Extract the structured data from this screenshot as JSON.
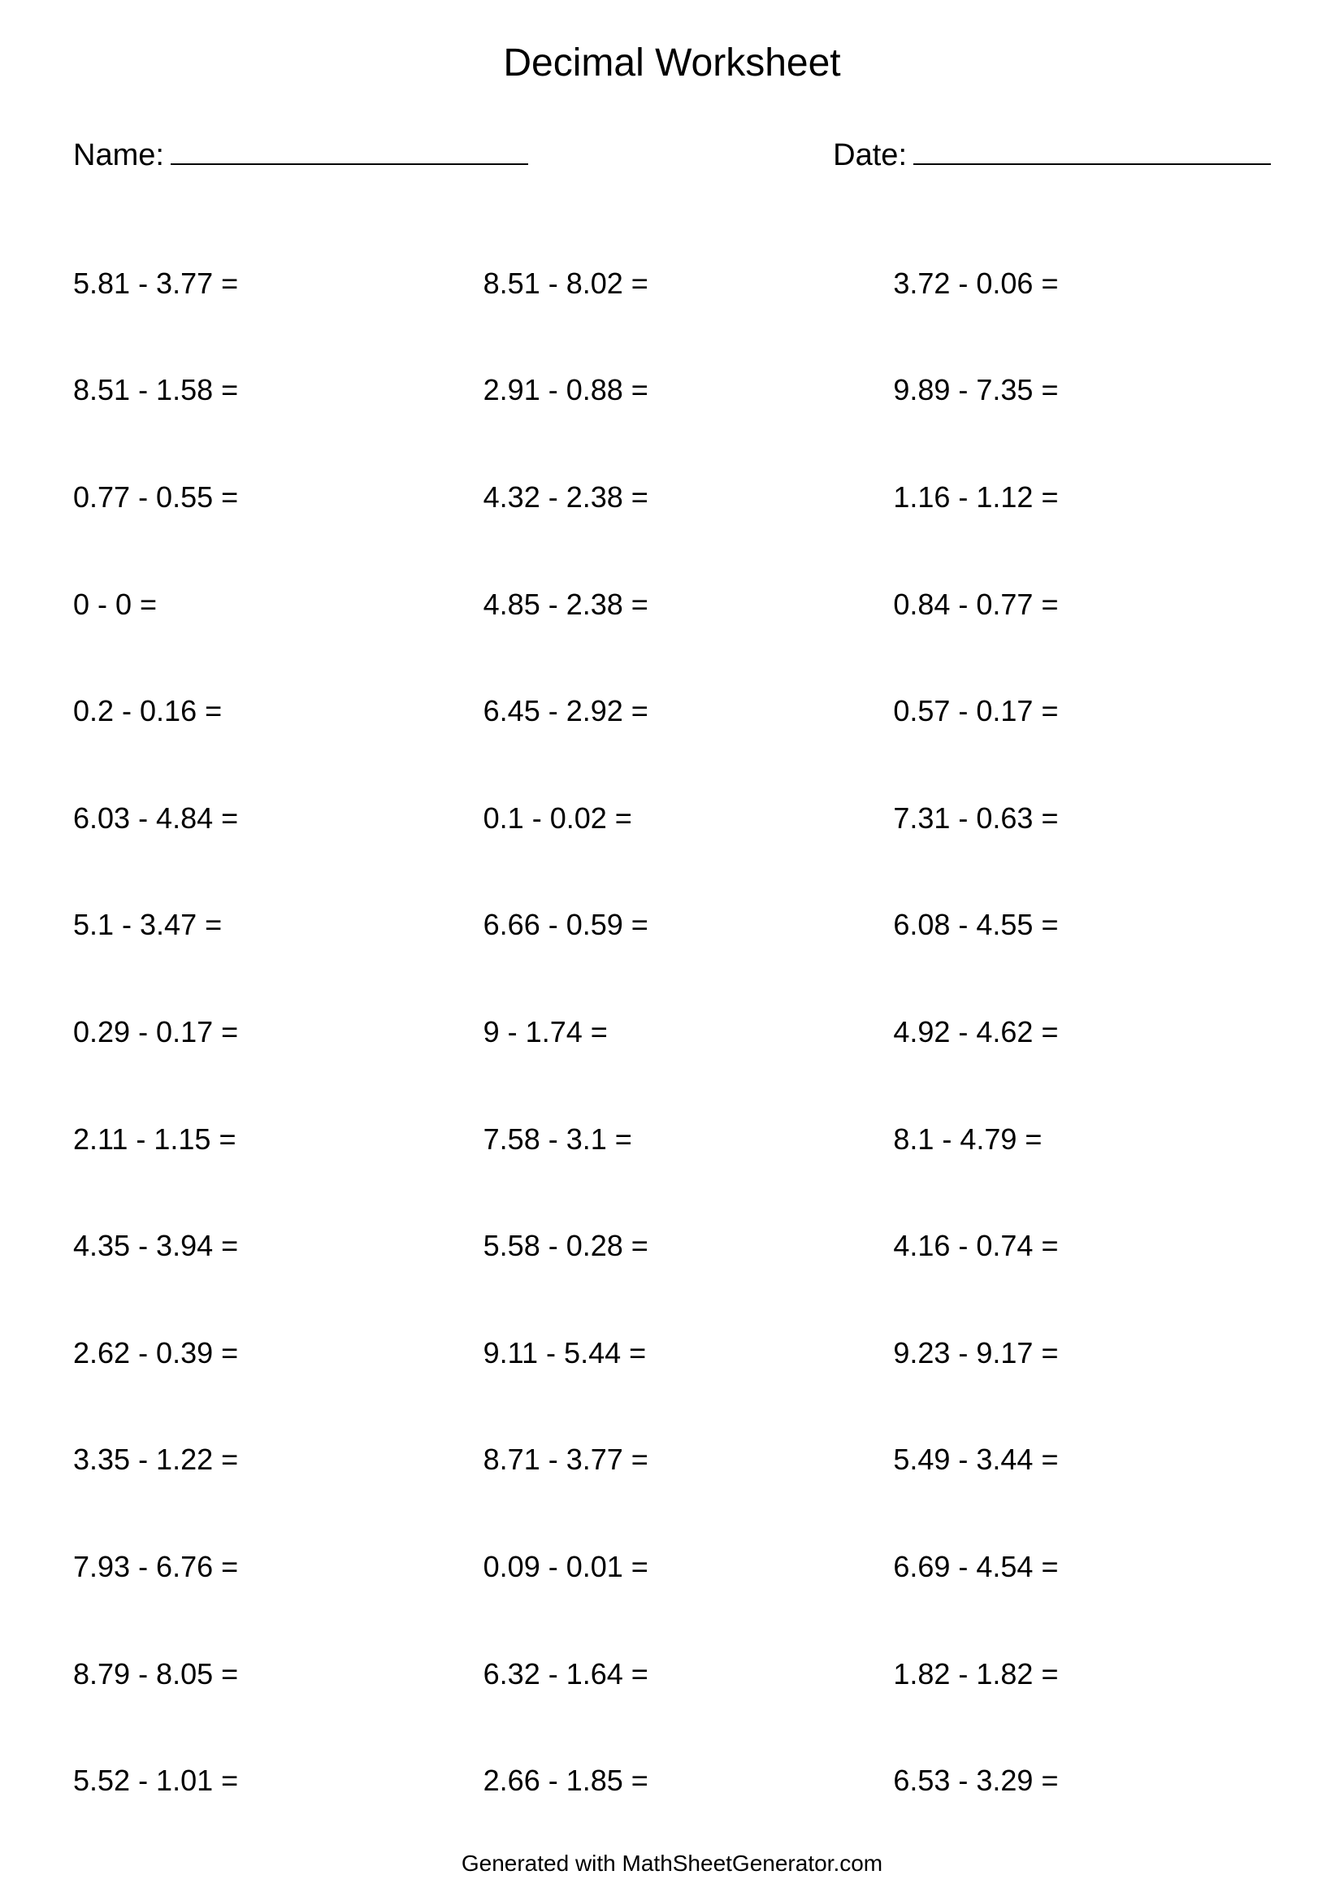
{
  "title": "Decimal Worksheet",
  "header": {
    "name_label": "Name:",
    "date_label": "Date:"
  },
  "layout": {
    "columns": 3,
    "rows": 15,
    "background_color": "#ffffff",
    "text_color": "#000000",
    "title_fontsize": 48,
    "header_fontsize": 38,
    "problem_fontsize": 36,
    "footer_fontsize": 28
  },
  "problems": [
    {
      "a": "5.81",
      "op": "-",
      "b": "3.77"
    },
    {
      "a": "8.51",
      "op": "-",
      "b": "1.58"
    },
    {
      "a": "0.77",
      "op": "-",
      "b": "0.55"
    },
    {
      "a": "0",
      "op": "-",
      "b": "0"
    },
    {
      "a": "0.2",
      "op": "-",
      "b": "0.16"
    },
    {
      "a": "6.03",
      "op": "-",
      "b": "4.84"
    },
    {
      "a": "5.1",
      "op": "-",
      "b": "3.47"
    },
    {
      "a": "0.29",
      "op": "-",
      "b": "0.17"
    },
    {
      "a": "2.11",
      "op": "-",
      "b": "1.15"
    },
    {
      "a": "4.35",
      "op": "-",
      "b": "3.94"
    },
    {
      "a": "2.62",
      "op": "-",
      "b": "0.39"
    },
    {
      "a": "3.35",
      "op": "-",
      "b": "1.22"
    },
    {
      "a": "7.93",
      "op": "-",
      "b": "6.76"
    },
    {
      "a": "8.79",
      "op": "-",
      "b": "8.05"
    },
    {
      "a": "5.52",
      "op": "-",
      "b": "1.01"
    },
    {
      "a": "8.51",
      "op": "-",
      "b": "8.02"
    },
    {
      "a": "2.91",
      "op": "-",
      "b": "0.88"
    },
    {
      "a": "4.32",
      "op": "-",
      "b": "2.38"
    },
    {
      "a": "4.85",
      "op": "-",
      "b": "2.38"
    },
    {
      "a": "6.45",
      "op": "-",
      "b": "2.92"
    },
    {
      "a": "0.1",
      "op": "-",
      "b": "0.02"
    },
    {
      "a": "6.66",
      "op": "-",
      "b": "0.59"
    },
    {
      "a": "9",
      "op": "-",
      "b": "1.74"
    },
    {
      "a": "7.58",
      "op": "-",
      "b": "3.1"
    },
    {
      "a": "5.58",
      "op": "-",
      "b": "0.28"
    },
    {
      "a": "9.11",
      "op": "-",
      "b": "5.44"
    },
    {
      "a": "8.71",
      "op": "-",
      "b": "3.77"
    },
    {
      "a": "0.09",
      "op": "-",
      "b": "0.01"
    },
    {
      "a": "6.32",
      "op": "-",
      "b": "1.64"
    },
    {
      "a": "2.66",
      "op": "-",
      "b": "1.85"
    },
    {
      "a": "3.72",
      "op": "-",
      "b": "0.06"
    },
    {
      "a": "9.89",
      "op": "-",
      "b": "7.35"
    },
    {
      "a": "1.16",
      "op": "-",
      "b": "1.12"
    },
    {
      "a": "0.84",
      "op": "-",
      "b": "0.77"
    },
    {
      "a": "0.57",
      "op": "-",
      "b": "0.17"
    },
    {
      "a": "7.31",
      "op": "-",
      "b": "0.63"
    },
    {
      "a": "6.08",
      "op": "-",
      "b": "4.55"
    },
    {
      "a": "4.92",
      "op": "-",
      "b": "4.62"
    },
    {
      "a": "8.1",
      "op": "-",
      "b": "4.79"
    },
    {
      "a": "4.16",
      "op": "-",
      "b": "0.74"
    },
    {
      "a": "9.23",
      "op": "-",
      "b": "9.17"
    },
    {
      "a": "5.49",
      "op": "-",
      "b": "3.44"
    },
    {
      "a": "6.69",
      "op": "-",
      "b": "4.54"
    },
    {
      "a": "1.82",
      "op": "-",
      "b": "1.82"
    },
    {
      "a": "6.53",
      "op": "-",
      "b": "3.29"
    }
  ],
  "footer": "Generated with MathSheetGenerator.com"
}
